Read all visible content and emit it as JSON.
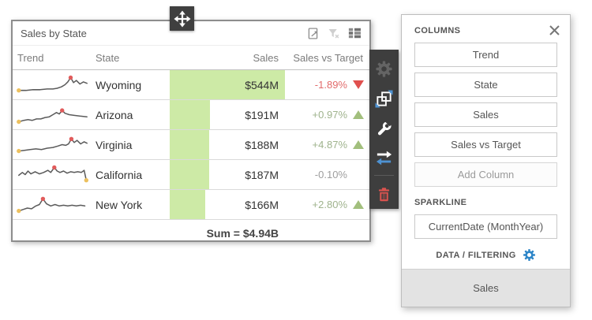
{
  "move_handle": {
    "icon": "move-icon"
  },
  "grid": {
    "title": "Sales by State",
    "title_icons": [
      {
        "name": "export-icon"
      },
      {
        "name": "clear-filter-icon"
      },
      {
        "name": "column-chooser-icon"
      }
    ],
    "columns": [
      "Trend",
      "State",
      "Sales",
      "Sales vs Target"
    ],
    "bar_max": 544,
    "rows": [
      {
        "state": "Wyoming",
        "sales": "$544M",
        "sales_value": 544,
        "delta": "-1.89%",
        "direction": "down",
        "sparkline": {
          "points": [
            [
              2,
              23
            ],
            [
              12,
              23
            ],
            [
              22,
              22
            ],
            [
              32,
              22
            ],
            [
              42,
              21
            ],
            [
              50,
              21
            ],
            [
              56,
              20
            ],
            [
              62,
              18
            ],
            [
              67,
              15
            ],
            [
              71,
              11
            ],
            [
              75,
              5
            ],
            [
              79,
              12
            ],
            [
              83,
              9
            ],
            [
              88,
              14
            ],
            [
              93,
              11
            ],
            [
              98,
              13
            ]
          ],
          "max_dot": [
            75,
            5
          ],
          "min_dot": [
            2,
            23
          ]
        }
      },
      {
        "state": "Arizona",
        "sales": "$191M",
        "sales_value": 191,
        "delta": "+0.97%",
        "direction": "up",
        "sparkline": {
          "points": [
            [
              2,
              25
            ],
            [
              9,
              23
            ],
            [
              15,
              22
            ],
            [
              21,
              23
            ],
            [
              27,
              21
            ],
            [
              33,
              21
            ],
            [
              39,
              19
            ],
            [
              45,
              18
            ],
            [
              50,
              15
            ],
            [
              55,
              12
            ],
            [
              59,
              14
            ],
            [
              63,
              9
            ],
            [
              67,
              13
            ],
            [
              73,
              15
            ],
            [
              80,
              16
            ],
            [
              88,
              17
            ],
            [
              98,
              18
            ]
          ],
          "max_dot": [
            63,
            9
          ],
          "min_dot": [
            2,
            25
          ]
        }
      },
      {
        "state": "Virginia",
        "sales": "$188M",
        "sales_value": 188,
        "delta": "+4.87%",
        "direction": "up",
        "sparkline": {
          "points": [
            [
              2,
              24
            ],
            [
              10,
              23
            ],
            [
              18,
              22
            ],
            [
              26,
              21
            ],
            [
              34,
              22
            ],
            [
              42,
              20
            ],
            [
              50,
              19
            ],
            [
              57,
              17
            ],
            [
              63,
              15
            ],
            [
              68,
              16
            ],
            [
              72,
              14
            ],
            [
              76,
              7
            ],
            [
              80,
              12
            ],
            [
              84,
              9
            ],
            [
              89,
              14
            ],
            [
              94,
              11
            ],
            [
              98,
              13
            ]
          ],
          "max_dot": [
            76,
            7
          ],
          "min_dot": [
            2,
            24
          ]
        }
      },
      {
        "state": "California",
        "sales": "$187M",
        "sales_value": 187,
        "delta": "-0.10%",
        "direction": "none",
        "sparkline": {
          "points": [
            [
              2,
              16
            ],
            [
              7,
              12
            ],
            [
              11,
              15
            ],
            [
              15,
              10
            ],
            [
              19,
              14
            ],
            [
              25,
              11
            ],
            [
              31,
              14
            ],
            [
              37,
              12
            ],
            [
              43,
              9
            ],
            [
              47,
              12
            ],
            [
              52,
              5
            ],
            [
              56,
              10
            ],
            [
              60,
              12
            ],
            [
              65,
              10
            ],
            [
              70,
              13
            ],
            [
              75,
              11
            ],
            [
              80,
              12
            ],
            [
              85,
              11
            ],
            [
              90,
              12
            ],
            [
              94,
              9
            ],
            [
              97,
              23
            ]
          ],
          "max_dot": [
            52,
            5
          ],
          "min_dot": [
            97,
            23
          ]
        }
      },
      {
        "state": "New York",
        "sales": "$166M",
        "sales_value": 166,
        "delta": "+2.80%",
        "direction": "up",
        "sparkline": {
          "points": [
            [
              2,
              24
            ],
            [
              8,
              22
            ],
            [
              14,
              20
            ],
            [
              20,
              21
            ],
            [
              26,
              17
            ],
            [
              31,
              15
            ],
            [
              36,
              7
            ],
            [
              41,
              14
            ],
            [
              47,
              17
            ],
            [
              53,
              15
            ],
            [
              59,
              17
            ],
            [
              65,
              16
            ],
            [
              71,
              17
            ],
            [
              77,
              16
            ],
            [
              83,
              17
            ],
            [
              89,
              16
            ],
            [
              95,
              17
            ]
          ],
          "max_dot": [
            36,
            7
          ],
          "min_dot": [
            2,
            24
          ]
        }
      }
    ],
    "summary": "Sum = $4.94B"
  },
  "side_toolbar": {
    "items": [
      {
        "name": "settings-gear-icon"
      },
      {
        "name": "resize-icon"
      },
      {
        "name": "tools-wrench-icon"
      },
      {
        "name": "convert-arrows-icon"
      },
      {
        "name": "delete-trash-icon"
      }
    ]
  },
  "panel": {
    "close_icon": "close-icon",
    "columns_section": {
      "label": "COLUMNS",
      "buttons": [
        "Trend",
        "State",
        "Sales",
        "Sales vs Target"
      ],
      "add_button": "Add Column"
    },
    "sparkline_section": {
      "label": "SPARKLINE",
      "button": "CurrentDate (MonthYear)"
    },
    "data_filtering": {
      "label": "DATA / FILTERING",
      "icon": "gear-icon"
    },
    "footer": {
      "label": "Sales"
    }
  },
  "colors": {
    "bar_green": "#cdeaa6",
    "up_green": "#a2bf7d",
    "up_text": "#9fb38d",
    "down_red": "#e0504e",
    "down_text": "#e26b6b",
    "neutral_text": "#9e9e9e",
    "spark_line": "#5b5b5b",
    "dot_red": "#e15b5b",
    "dot_yellow": "#ecc05e",
    "toolbar_bg": "#3e3e3e",
    "trash_red": "#d9534f",
    "accent_blue": "#4e92d2",
    "gear_blue": "#2e86c8"
  }
}
